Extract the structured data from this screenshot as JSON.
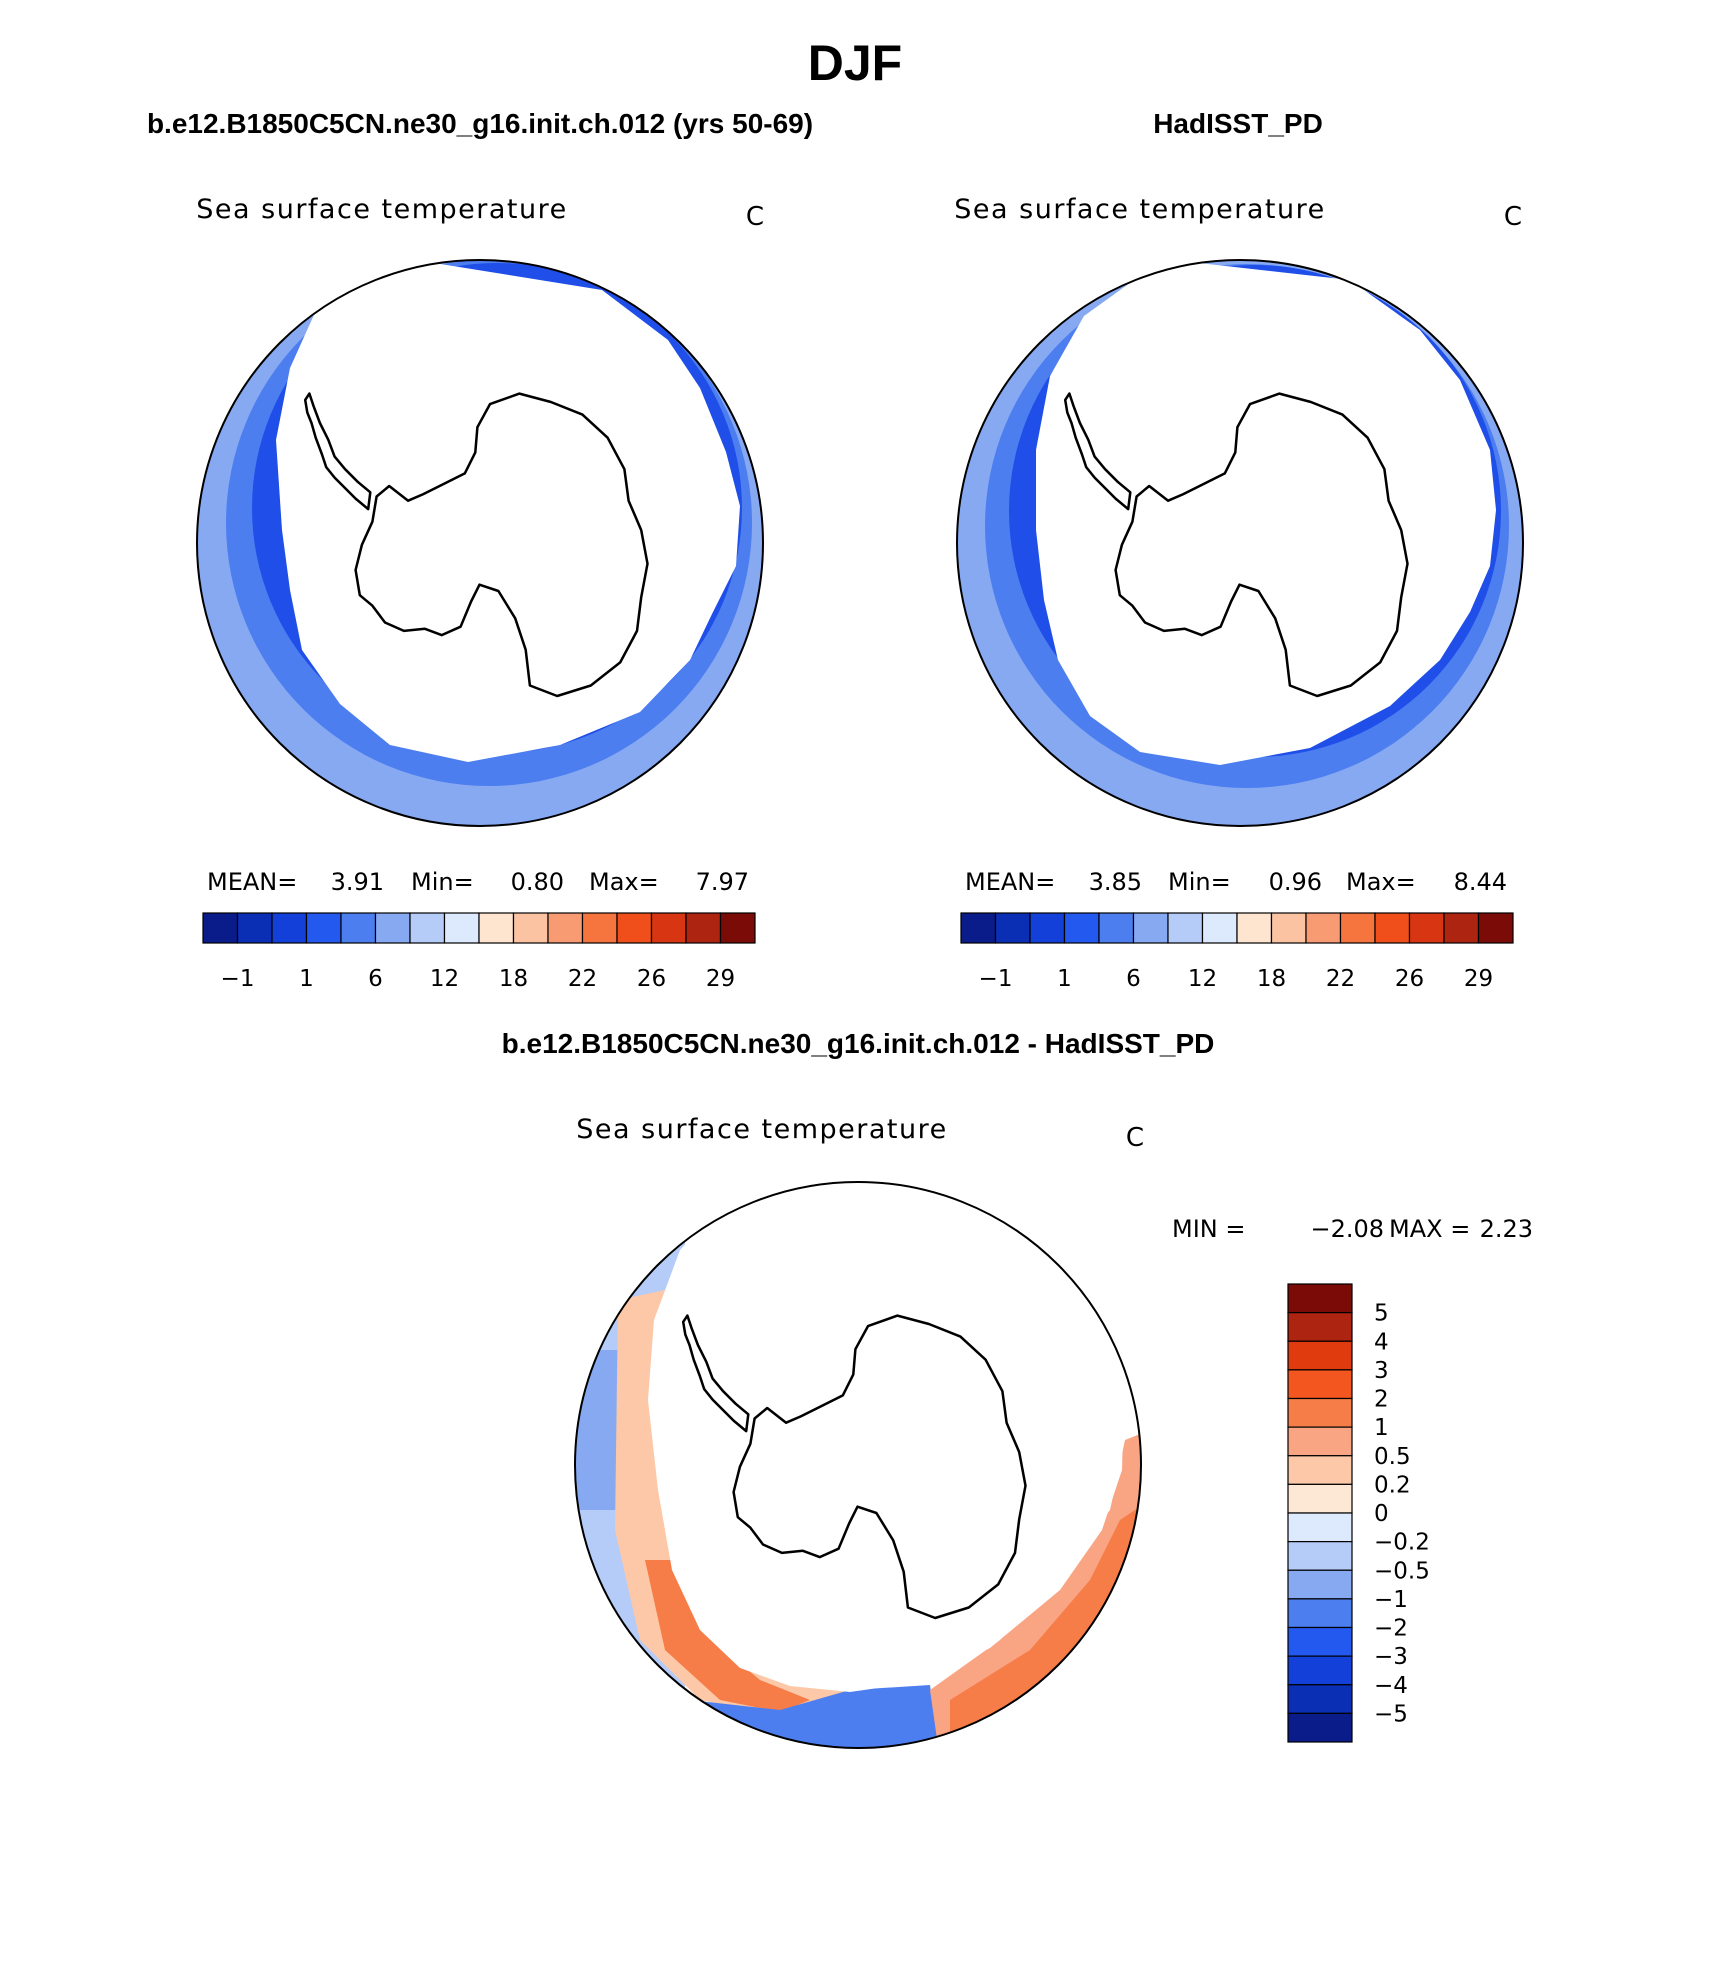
{
  "main_title": "DJF",
  "colors": {
    "ocean_pale": "#86a9f2",
    "ocean_mid": "#4c7ef0",
    "ocean_deep": "#1f4fe8",
    "land": "#ffffff",
    "coast": "#000000"
  },
  "panels": [
    {
      "header": "b.e12.B1850C5CN.ne30_g16.init.ch.012 (yrs 50-69)",
      "plot_title": "Sea surface temperature",
      "units": "C",
      "stats": {
        "mean_label": "MEAN=",
        "mean": "3.91",
        "min_label": "Min=",
        "min": "0.80",
        "max_label": "Max=",
        "max": "7.97"
      }
    },
    {
      "header": "HadISST_PD",
      "plot_title": "Sea surface temperature",
      "units": "C",
      "stats": {
        "mean_label": "MEAN=",
        "mean": "3.85",
        "min_label": "Min=",
        "min": "0.96",
        "max_label": "Max=",
        "max": "8.44"
      }
    }
  ],
  "sst_colorbar": {
    "colors": [
      "#0a1b8a",
      "#0a2fb5",
      "#1240d8",
      "#2459f0",
      "#4c7ef0",
      "#86a9f2",
      "#b5cbf8",
      "#dde9fc",
      "#fde5cf",
      "#fcc3a3",
      "#f99b72",
      "#f6743e",
      "#f04e1a",
      "#d83612",
      "#ad2410",
      "#7a0b06"
    ],
    "tick_labels": [
      "−1",
      "1",
      "6",
      "12",
      "18",
      "22",
      "26",
      "29"
    ]
  },
  "diff_panel": {
    "header": "b.e12.B1850C5CN.ne30_g16.init.ch.012 - HadISST_PD",
    "plot_title": "Sea surface temperature",
    "units": "C",
    "stats": {
      "min_label": "MIN =",
      "min": "−2.08",
      "max_label": "MAX =",
      "max": "2.23"
    },
    "colorbar": {
      "colors": [
        "#7a0b06",
        "#ad2410",
        "#e03a0f",
        "#f4561f",
        "#f67c48",
        "#f9a583",
        "#fcc8a8",
        "#fde8d6",
        "#dde9fc",
        "#b5cbf8",
        "#86a9f2",
        "#4c7ef0",
        "#2459f0",
        "#1240d8",
        "#0a2fb5",
        "#0a1b8a"
      ],
      "tick_labels": [
        "5",
        "4",
        "3",
        "2",
        "1",
        "0.5",
        "0.2",
        "0",
        "−0.2",
        "−0.5",
        "−1",
        "−2",
        "−3",
        "−4",
        "−5"
      ]
    }
  }
}
